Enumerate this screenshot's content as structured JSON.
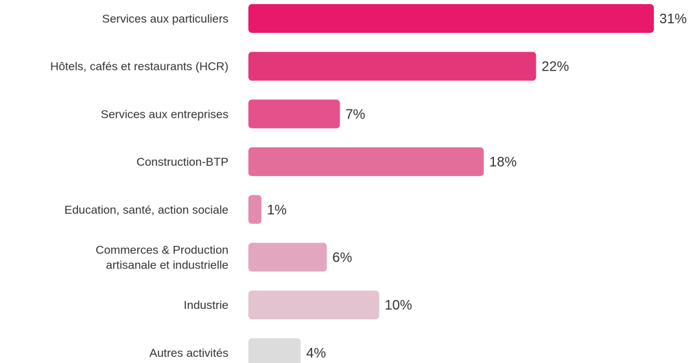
{
  "chart_data": {
    "type": "bar",
    "orientation": "horizontal",
    "categories": [
      [
        "Services aux particuliers"
      ],
      [
        "Hôtels, cafés et restaurants (HCR)"
      ],
      [
        "Services aux entreprises"
      ],
      [
        "Construction-BTP"
      ],
      [
        "Education, santé, action sociale"
      ],
      [
        "Commerces & Production",
        "artisanale et industrielle"
      ],
      [
        "Industrie"
      ],
      [
        "Autres activités"
      ]
    ],
    "values": [
      31,
      22,
      7,
      18,
      1,
      6,
      10,
      4
    ],
    "value_labels": [
      "31%",
      "22%",
      "7%",
      "18%",
      "1%",
      "6%",
      "10%",
      "4%"
    ],
    "unit": "%",
    "colors": [
      "#e8196b",
      "#e4377a",
      "#e5518a",
      "#e46e9a",
      "#e48bb0",
      "#e2a6bf",
      "#e3c3cf",
      "#dcdcdc"
    ],
    "xlim": [
      0,
      31
    ],
    "grid": false,
    "legend": "none"
  }
}
